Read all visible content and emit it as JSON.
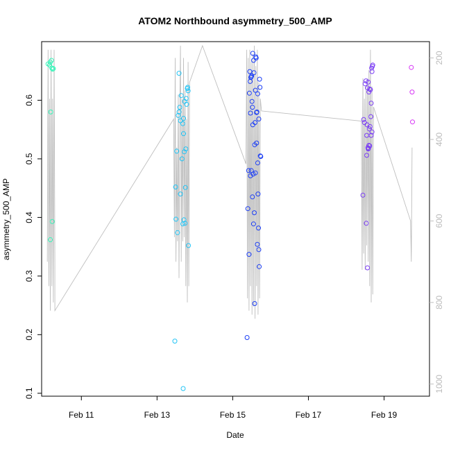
{
  "chart_data": {
    "type": "scatter",
    "title": "ATOM2 Northbound asymmetry_500_AMP",
    "xlabel": "Date",
    "ylabel": "asymmetry_500_AMP",
    "x_ticks": [
      "Feb 11",
      "Feb 13",
      "Feb 15",
      "Feb 17",
      "Feb 19"
    ],
    "x_tick_values": [
      11,
      13,
      15,
      17,
      19
    ],
    "xlim": [
      9.95,
      20.2
    ],
    "y_ticks": [
      0.1,
      0.2,
      0.3,
      0.4,
      0.5,
      0.6
    ],
    "ylim": [
      0.095,
      0.7
    ],
    "y2_ticks": [
      200,
      400,
      600,
      800,
      1000
    ],
    "y2lim": [
      1030,
      160
    ],
    "grid": false,
    "legend": "none",
    "colors": {
      "line": "#bebebe",
      "axis": "#000000",
      "secondary_axis": "#bebebe",
      "group_colors": [
        "#33f5b8",
        "#22c4f5",
        "#1c3ef5",
        "#7a3cf5",
        "#d633f5"
      ]
    },
    "series": [
      {
        "points": [
          [
            10.12,
            0.662
          ],
          [
            10.16,
            0.66
          ],
          [
            10.18,
            0.665
          ],
          [
            10.21,
            0.668
          ],
          [
            10.22,
            0.655
          ],
          [
            10.24,
            0.653
          ],
          [
            10.26,
            0.654
          ],
          [
            10.19,
            0.58
          ],
          [
            10.23,
            0.393
          ],
          [
            10.18,
            0.362
          ]
        ]
      },
      {
        "points": [
          [
            13.47,
            0.189
          ],
          [
            13.49,
            0.452
          ],
          [
            13.5,
            0.397
          ],
          [
            13.52,
            0.513
          ],
          [
            13.54,
            0.374
          ],
          [
            13.56,
            0.574
          ],
          [
            13.58,
            0.58
          ],
          [
            13.6,
            0.588
          ],
          [
            13.62,
            0.44
          ],
          [
            13.64,
            0.608
          ],
          [
            13.66,
            0.5
          ],
          [
            13.68,
            0.56
          ],
          [
            13.69,
            0.108
          ],
          [
            13.7,
            0.569
          ],
          [
            13.71,
            0.396
          ],
          [
            13.72,
            0.512
          ],
          [
            13.74,
            0.39
          ],
          [
            13.75,
            0.451
          ],
          [
            13.76,
            0.517
          ],
          [
            13.77,
            0.603
          ],
          [
            13.78,
            0.593
          ],
          [
            13.8,
            0.62
          ],
          [
            13.81,
            0.622
          ],
          [
            13.82,
            0.616
          ],
          [
            13.83,
            0.352
          ],
          [
            13.58,
            0.646
          ],
          [
            13.7,
            0.543
          ],
          [
            13.73,
            0.598
          ],
          [
            13.62,
            0.565
          ],
          [
            13.68,
            0.389
          ]
        ]
      },
      {
        "points": [
          [
            15.38,
            0.195
          ],
          [
            15.4,
            0.415
          ],
          [
            15.42,
            0.48
          ],
          [
            15.43,
            0.337
          ],
          [
            15.44,
            0.612
          ],
          [
            15.45,
            0.649
          ],
          [
            15.46,
            0.632
          ],
          [
            15.47,
            0.578
          ],
          [
            15.48,
            0.639
          ],
          [
            15.49,
            0.64
          ],
          [
            15.5,
            0.642
          ],
          [
            15.51,
            0.598
          ],
          [
            15.52,
            0.588
          ],
          [
            15.53,
            0.68
          ],
          [
            15.54,
            0.474
          ],
          [
            15.55,
            0.389
          ],
          [
            15.56,
            0.647
          ],
          [
            15.57,
            0.408
          ],
          [
            15.58,
            0.253
          ],
          [
            15.59,
            0.562
          ],
          [
            15.6,
            0.617
          ],
          [
            15.61,
            0.674
          ],
          [
            15.62,
            0.672
          ],
          [
            15.63,
            0.527
          ],
          [
            15.64,
            0.58
          ],
          [
            15.65,
            0.354
          ],
          [
            15.66,
            0.493
          ],
          [
            15.67,
            0.44
          ],
          [
            15.68,
            0.382
          ],
          [
            15.69,
            0.345
          ],
          [
            15.7,
            0.316
          ],
          [
            15.71,
            0.636
          ],
          [
            15.72,
            0.622
          ],
          [
            15.73,
            0.505
          ],
          [
            15.74,
            0.504
          ],
          [
            15.49,
            0.48
          ],
          [
            15.52,
            0.435
          ],
          [
            15.55,
            0.668
          ],
          [
            15.58,
            0.524
          ],
          [
            15.63,
            0.579
          ],
          [
            15.66,
            0.611
          ],
          [
            15.69,
            0.568
          ],
          [
            15.47,
            0.471
          ],
          [
            15.53,
            0.558
          ],
          [
            15.6,
            0.476
          ]
        ]
      },
      {
        "points": [
          [
            18.44,
            0.438
          ],
          [
            18.46,
            0.567
          ],
          [
            18.48,
            0.562
          ],
          [
            18.5,
            0.628
          ],
          [
            18.52,
            0.633
          ],
          [
            18.53,
            0.39
          ],
          [
            18.54,
            0.506
          ],
          [
            18.55,
            0.558
          ],
          [
            18.56,
            0.621
          ],
          [
            18.57,
            0.519
          ],
          [
            18.58,
            0.517
          ],
          [
            18.59,
            0.518
          ],
          [
            18.6,
            0.614
          ],
          [
            18.61,
            0.551
          ],
          [
            18.62,
            0.619
          ],
          [
            18.63,
            0.555
          ],
          [
            18.64,
            0.618
          ],
          [
            18.65,
            0.572
          ],
          [
            18.66,
            0.595
          ],
          [
            18.67,
            0.655
          ],
          [
            18.68,
            0.649
          ],
          [
            18.69,
            0.658
          ],
          [
            18.7,
            0.66
          ],
          [
            18.56,
            0.314
          ],
          [
            18.62,
            0.522
          ],
          [
            18.58,
            0.631
          ],
          [
            18.66,
            0.54
          ],
          [
            18.54,
            0.54
          ],
          [
            18.6,
            0.523
          ],
          [
            18.68,
            0.546
          ]
        ]
      },
      {
        "points": [
          [
            19.72,
            0.656
          ],
          [
            19.74,
            0.614
          ],
          [
            19.75,
            0.563
          ]
        ]
      }
    ],
    "line_series": {
      "points": [
        [
          10.1,
          700
        ],
        [
          10.12,
          180
        ],
        [
          10.14,
          760
        ],
        [
          10.16,
          300
        ],
        [
          10.18,
          820
        ],
        [
          10.2,
          180
        ],
        [
          10.22,
          760
        ],
        [
          10.24,
          300
        ],
        [
          10.26,
          800
        ],
        [
          10.28,
          180
        ],
        [
          10.3,
          700
        ],
        [
          10.3,
          820
        ],
        [
          13.44,
          350
        ],
        [
          13.46,
          640
        ],
        [
          13.48,
          200
        ],
        [
          13.5,
          700
        ],
        [
          13.52,
          420
        ],
        [
          13.54,
          650
        ],
        [
          13.56,
          290
        ],
        [
          13.58,
          740
        ],
        [
          13.6,
          330
        ],
        [
          13.62,
          170
        ],
        [
          13.64,
          700
        ],
        [
          13.66,
          300
        ],
        [
          13.68,
          650
        ],
        [
          13.7,
          200
        ],
        [
          13.72,
          640
        ],
        [
          13.74,
          280
        ],
        [
          13.76,
          760
        ],
        [
          13.78,
          350
        ],
        [
          13.8,
          800
        ],
        [
          13.82,
          210
        ],
        [
          13.84,
          760
        ],
        [
          13.86,
          260
        ],
        [
          14.2,
          170
        ],
        [
          15.35,
          460
        ],
        [
          15.37,
          180
        ],
        [
          15.39,
          790
        ],
        [
          15.41,
          200
        ],
        [
          15.43,
          820
        ],
        [
          15.45,
          180
        ],
        [
          15.47,
          760
        ],
        [
          15.49,
          210
        ],
        [
          15.51,
          830
        ],
        [
          15.53,
          190
        ],
        [
          15.55,
          810
        ],
        [
          15.57,
          170
        ],
        [
          15.59,
          840
        ],
        [
          15.61,
          220
        ],
        [
          15.63,
          760
        ],
        [
          15.65,
          180
        ],
        [
          15.67,
          830
        ],
        [
          15.69,
          260
        ],
        [
          15.71,
          790
        ],
        [
          15.73,
          300
        ],
        [
          15.76,
          330
        ],
        [
          18.4,
          355
        ],
        [
          18.42,
          720
        ],
        [
          18.44,
          250
        ],
        [
          18.46,
          680
        ],
        [
          18.48,
          300
        ],
        [
          18.5,
          720
        ],
        [
          18.52,
          270
        ],
        [
          18.54,
          660
        ],
        [
          18.56,
          250
        ],
        [
          18.58,
          700
        ],
        [
          18.6,
          230
        ],
        [
          18.62,
          760
        ],
        [
          18.64,
          180
        ],
        [
          18.66,
          800
        ],
        [
          18.68,
          270
        ],
        [
          18.7,
          780
        ],
        [
          18.72,
          320
        ],
        [
          19.7,
          600
        ],
        [
          19.72,
          700
        ],
        [
          19.74,
          420
        ]
      ]
    }
  }
}
